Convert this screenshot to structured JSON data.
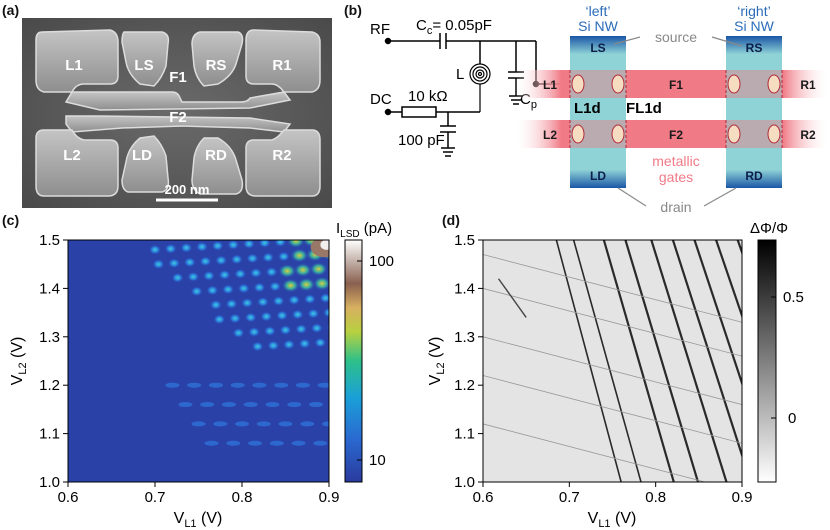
{
  "panels": {
    "a": {
      "label": "(a)",
      "scale_bar": "200 nm",
      "gate_labels": [
        "L1",
        "LS",
        "RS",
        "R1",
        "F1",
        "F2",
        "L2",
        "LD",
        "RD",
        "R2"
      ]
    },
    "b": {
      "label": "(b)",
      "rf_label": "RF",
      "dc_label": "DC",
      "cc_label": "C",
      "cc_sub": "c",
      "cc_value": "= 0.05pF",
      "l_label": "L",
      "cp_label": "C",
      "cp_sub": "p",
      "r_label": "10 kΩ",
      "cap_label": "100 pF",
      "left_nw_title": "‘left’",
      "left_nw_sub": "Si NW",
      "right_nw_title": "‘right’",
      "right_nw_sub": "Si NW",
      "source_label": "source",
      "drain_label": "drain",
      "metallic_label": "metallic",
      "gates_label": "gates",
      "ls": "LS",
      "rs": "RS",
      "ld": "LD",
      "rd": "RD",
      "l1": "L1",
      "f1": "F1",
      "r1": "R1",
      "l2": "L2",
      "f2": "F2",
      "r2": "R2",
      "l1d": "L1d",
      "fl1d": "FL1d",
      "colors": {
        "nw_blue": "#1a56a6",
        "nw_cyan": "#8fd3d6",
        "gate_pink": "#f07a86"
      }
    },
    "c": {
      "label": "(c)",
      "colorbar_label": "I",
      "colorbar_sub": "LSD",
      "colorbar_unit": " (pA)",
      "colorbar_ticks": [
        "100",
        "10"
      ]
    },
    "d": {
      "label": "(d)",
      "colorbar_label": "ΔΦ/Φ",
      "colorbar_ticks": [
        "0.5",
        "0"
      ]
    }
  },
  "chart_data": [
    {
      "type": "heatmap",
      "panel": "c",
      "xlabel": "V",
      "xlabel_sub": "L1",
      "xlabel_unit": " (V)",
      "ylabel": "V",
      "ylabel_sub": "L2",
      "ylabel_unit": " (V)",
      "xlim": [
        0.6,
        0.9
      ],
      "ylim": [
        1.0,
        1.5
      ],
      "x_ticks": [
        "0.6",
        "0.7",
        "0.8",
        "0.9"
      ],
      "y_ticks": [
        "1.0",
        "1.1",
        "1.2",
        "1.3",
        "1.4",
        "1.5"
      ],
      "colorbar": {
        "scale": "log",
        "range_pA": [
          7,
          150
        ],
        "ticks": [
          10,
          100
        ]
      }
    },
    {
      "type": "heatmap",
      "panel": "d",
      "xlabel": "V",
      "xlabel_sub": "L1",
      "xlabel_unit": " (V)",
      "ylabel": "V",
      "ylabel_sub": "L2",
      "ylabel_unit": " (V)",
      "xlim": [
        0.6,
        0.9
      ],
      "ylim": [
        1.0,
        1.5
      ],
      "x_ticks": [
        "0.6",
        "0.7",
        "0.8",
        "0.9"
      ],
      "y_ticks": [
        "1.0",
        "1.1",
        "1.2",
        "1.3",
        "1.4",
        "1.5"
      ],
      "colorbar": {
        "range": [
          -0.25,
          0.7
        ],
        "ticks": [
          0,
          0.5
        ]
      }
    }
  ]
}
